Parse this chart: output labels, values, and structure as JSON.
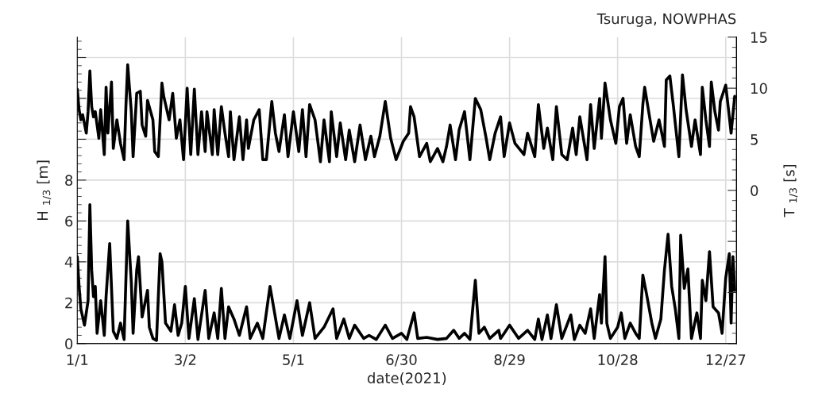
{
  "chart_data": {
    "type": "line",
    "title": "Tsuruga, NOWPHAS",
    "xlabel": "date(2021)",
    "ylabel": "H $_{1/3}$ [m]",
    "y2label": "T $_{1/3}$ [s]",
    "xlim": [
      "2021-01-01",
      "2022-01-02"
    ],
    "xticks": [
      {
        "value": "2021-01-01",
        "label": "1/1"
      },
      {
        "value": "2021-03-02",
        "label": "3/2"
      },
      {
        "value": "2021-05-01",
        "label": "5/1"
      },
      {
        "value": "2021-06-30",
        "label": "6/30"
      },
      {
        "value": "2021-08-29",
        "label": "8/29"
      },
      {
        "value": "2021-10-28",
        "label": "10/28"
      },
      {
        "value": "2021-12-27",
        "label": "12/27"
      }
    ],
    "ylim": [
      0,
      15
    ],
    "yticks": [
      0,
      2,
      4,
      6,
      8,
      {
        "value": 10,
        "label": null
      },
      {
        "value": 12,
        "label": null
      },
      {
        "value": 14,
        "label": null
      }
    ],
    "y2lim": [
      -15,
      15
    ],
    "y2ticks": [
      {
        "value": -15,
        "label": null
      },
      {
        "value": -10,
        "label": null
      },
      {
        "value": -5,
        "label": null
      },
      0,
      5,
      10,
      15
    ],
    "grid": true,
    "line_style": "solid",
    "marker": "none",
    "series": [
      {
        "color": "#000000",
        "x": [
          "2021-01-01",
          "2021-01-02",
          "2021-01-03",
          "2021-01-04",
          "2021-01-05",
          "2021-01-07",
          "2021-01-08",
          "2021-01-09",
          "2021-01-10",
          "2021-01-11",
          "2021-01-12",
          "2021-01-14",
          "2021-01-16",
          "2021-01-17",
          "2021-01-19",
          "2021-01-21",
          "2021-01-23",
          "2021-01-25",
          "2021-01-27",
          "2021-01-29",
          "2021-01-31",
          "2021-02-01",
          "2021-02-03",
          "2021-02-04",
          "2021-02-06",
          "2021-02-09",
          "2021-02-10",
          "2021-02-12",
          "2021-02-14",
          "2021-02-16",
          "2021-02-17",
          "2021-02-19",
          "2021-02-22",
          "2021-02-24",
          "2021-02-26",
          "2021-02-28",
          "2021-03-02",
          "2021-03-04",
          "2021-03-07",
          "2021-03-09",
          "2021-03-13",
          "2021-03-15",
          "2021-03-18",
          "2021-03-20",
          "2021-03-22",
          "2021-03-24",
          "2021-03-26",
          "2021-03-29",
          "2021-04-01",
          "2021-04-05",
          "2021-04-07",
          "2021-04-11",
          "2021-04-14",
          "2021-04-18",
          "2021-04-23",
          "2021-04-26",
          "2021-04-29",
          "2021-05-03",
          "2021-05-06",
          "2021-05-10",
          "2021-05-13",
          "2021-05-18",
          "2021-05-23",
          "2021-05-25",
          "2021-05-29",
          "2021-06-01",
          "2021-06-04",
          "2021-06-09",
          "2021-06-12",
          "2021-06-16",
          "2021-06-21",
          "2021-06-25",
          "2021-06-30",
          "2021-07-03",
          "2021-07-07",
          "2021-07-09",
          "2021-07-14",
          "2021-07-20",
          "2021-07-25",
          "2021-07-29",
          "2021-08-01",
          "2021-08-04",
          "2021-08-07",
          "2021-08-10",
          "2021-08-12",
          "2021-08-15",
          "2021-08-18",
          "2021-08-23",
          "2021-08-24",
          "2021-08-26",
          "2021-08-29",
          "2021-09-03",
          "2021-09-08",
          "2021-09-12",
          "2021-09-14",
          "2021-09-16",
          "2021-09-19",
          "2021-09-21",
          "2021-09-24",
          "2021-09-27",
          "2021-10-02",
          "2021-10-04",
          "2021-10-07",
          "2021-10-10",
          "2021-10-13",
          "2021-10-15",
          "2021-10-18",
          "2021-10-19",
          "2021-10-21",
          "2021-10-22",
          "2021-10-24",
          "2021-10-28",
          "2021-10-30",
          "2021-11-01",
          "2021-11-04",
          "2021-11-07",
          "2021-11-09",
          "2021-11-11",
          "2021-11-13",
          "2021-11-16",
          "2021-11-18",
          "2021-11-21",
          "2021-11-23",
          "2021-11-25",
          "2021-11-27",
          "2021-11-29",
          "2021-12-01",
          "2021-12-02",
          "2021-12-04",
          "2021-12-06",
          "2021-12-08",
          "2021-12-11",
          "2021-12-13",
          "2021-12-14",
          "2021-12-16",
          "2021-12-18",
          "2021-12-20",
          "2021-12-23",
          "2021-12-25",
          "2021-12-27",
          "2021-12-29",
          "2021-12-30",
          "2021-12-31",
          "2022-01-01"
        ],
        "values": [
          4.25,
          2.8,
          1.7,
          1.3,
          0.9,
          2.1,
          6.8,
          3.6,
          2.3,
          2.8,
          0.5,
          2.1,
          0.4,
          2.3,
          4.9,
          0.6,
          0.25,
          1.0,
          0.2,
          6.0,
          3.0,
          0.5,
          3.6,
          4.25,
          1.3,
          2.6,
          0.8,
          0.25,
          0.15,
          4.4,
          4.0,
          1.0,
          0.6,
          1.9,
          0.4,
          1.0,
          2.8,
          0.25,
          2.2,
          0.2,
          2.6,
          0.25,
          1.5,
          0.25,
          2.7,
          0.25,
          1.8,
          1.2,
          0.4,
          1.8,
          0.25,
          1.0,
          0.25,
          2.8,
          0.25,
          1.4,
          0.25,
          2.1,
          0.4,
          2.0,
          0.25,
          0.8,
          1.7,
          0.25,
          1.2,
          0.25,
          0.9,
          0.25,
          0.4,
          0.2,
          0.9,
          0.25,
          0.5,
          0.2,
          1.5,
          0.25,
          0.3,
          0.2,
          0.25,
          0.65,
          0.25,
          0.5,
          0.2,
          3.1,
          0.5,
          0.8,
          0.25,
          0.65,
          0.25,
          0.5,
          0.9,
          0.25,
          0.65,
          0.2,
          1.2,
          0.2,
          1.4,
          0.25,
          1.9,
          0.25,
          1.4,
          0.2,
          0.9,
          0.5,
          1.7,
          0.25,
          2.4,
          1.0,
          4.25,
          1.0,
          0.25,
          0.8,
          1.5,
          0.25,
          1.0,
          0.5,
          0.25,
          3.35,
          2.45,
          1.0,
          0.25,
          1.2,
          3.6,
          5.35,
          2.8,
          1.7,
          0.25,
          5.3,
          2.7,
          3.65,
          0.25,
          1.5,
          0.25,
          3.1,
          2.1,
          4.5,
          1.8,
          1.5,
          0.5,
          3.2,
          4.4,
          1.0,
          4.25,
          2.6
        ]
      },
      {
        "color": "#000000",
        "axis": "y2",
        "x": [
          "2021-01-01",
          "2021-01-02",
          "2021-01-03",
          "2021-01-04",
          "2021-01-06",
          "2021-01-07",
          "2021-01-08",
          "2021-01-09",
          "2021-01-10",
          "2021-01-11",
          "2021-01-13",
          "2021-01-14",
          "2021-01-16",
          "2021-01-17",
          "2021-01-18",
          "2021-01-20",
          "2021-01-21",
          "2021-01-23",
          "2021-01-25",
          "2021-01-27",
          "2021-01-28",
          "2021-01-29",
          "2021-01-31",
          "2021-02-01",
          "2021-02-03",
          "2021-02-05",
          "2021-02-06",
          "2021-02-08",
          "2021-02-09",
          "2021-02-12",
          "2021-02-13",
          "2021-02-15",
          "2021-02-17",
          "2021-02-18",
          "2021-02-21",
          "2021-02-23",
          "2021-02-25",
          "2021-02-27",
          "2021-03-01",
          "2021-03-03",
          "2021-03-05",
          "2021-03-07",
          "2021-03-09",
          "2021-03-11",
          "2021-03-13",
          "2021-03-14",
          "2021-03-17",
          "2021-03-18",
          "2021-03-20",
          "2021-03-22",
          "2021-03-24",
          "2021-03-26",
          "2021-03-27",
          "2021-03-29",
          "2021-04-01",
          "2021-04-03",
          "2021-04-05",
          "2021-04-06",
          "2021-04-09",
          "2021-04-12",
          "2021-04-14",
          "2021-04-16",
          "2021-04-19",
          "2021-04-21",
          "2021-04-23",
          "2021-04-26",
          "2021-04-28",
          "2021-05-01",
          "2021-05-04",
          "2021-05-06",
          "2021-05-08",
          "2021-05-10",
          "2021-05-13",
          "2021-05-16",
          "2021-05-18",
          "2021-05-21",
          "2021-05-22",
          "2021-05-25",
          "2021-05-27",
          "2021-05-30",
          "2021-06-01",
          "2021-06-04",
          "2021-06-07",
          "2021-06-10",
          "2021-06-13",
          "2021-06-15",
          "2021-06-18",
          "2021-06-21",
          "2021-06-24",
          "2021-06-27",
          "2021-07-01",
          "2021-07-04",
          "2021-07-05",
          "2021-07-07",
          "2021-07-10",
          "2021-07-14",
          "2021-07-16",
          "2021-07-20",
          "2021-07-23",
          "2021-07-25",
          "2021-07-27",
          "2021-07-30",
          "2021-08-01",
          "2021-08-04",
          "2021-08-07",
          "2021-08-10",
          "2021-08-13",
          "2021-08-16",
          "2021-08-18",
          "2021-08-21",
          "2021-08-24",
          "2021-08-26",
          "2021-08-29",
          "2021-09-01",
          "2021-09-06",
          "2021-09-08",
          "2021-09-12",
          "2021-09-14",
          "2021-09-17",
          "2021-09-19",
          "2021-09-22",
          "2021-09-24",
          "2021-09-27",
          "2021-09-30",
          "2021-10-03",
          "2021-10-05",
          "2021-10-07",
          "2021-10-11",
          "2021-10-13",
          "2021-10-15",
          "2021-10-18",
          "2021-10-19",
          "2021-10-21",
          "2021-10-24",
          "2021-10-27",
          "2021-10-29",
          "2021-10-31",
          "2021-11-02",
          "2021-11-04",
          "2021-11-07",
          "2021-11-09",
          "2021-11-11",
          "2021-11-12",
          "2021-11-15",
          "2021-11-17",
          "2021-11-20",
          "2021-11-23",
          "2021-11-24",
          "2021-11-26",
          "2021-11-28",
          "2021-12-01",
          "2021-12-03",
          "2021-12-05",
          "2021-12-08",
          "2021-12-10",
          "2021-12-13",
          "2021-12-14",
          "2021-12-16",
          "2021-12-18",
          "2021-12-19",
          "2021-12-21",
          "2021-12-23",
          "2021-12-24",
          "2021-12-27",
          "2021-12-29",
          "2021-12-30",
          "2022-01-01"
        ],
        "values": [
          9.9,
          7.9,
          6.9,
          7.4,
          5.6,
          7.7,
          11.7,
          8.2,
          7.2,
          7.7,
          5.1,
          7.9,
          3.5,
          10.1,
          5.6,
          10.6,
          4.1,
          6.9,
          4.6,
          3.0,
          8.2,
          12.3,
          7.7,
          3.3,
          9.5,
          9.7,
          6.4,
          5.3,
          8.8,
          6.9,
          3.8,
          3.3,
          10.5,
          9.2,
          6.9,
          9.5,
          5.1,
          6.9,
          3.0,
          10.0,
          3.5,
          9.9,
          3.5,
          7.7,
          3.8,
          7.7,
          3.5,
          7.9,
          3.5,
          8.2,
          5.6,
          3.3,
          7.7,
          3.0,
          7.2,
          3.0,
          6.9,
          4.1,
          6.9,
          7.9,
          3.0,
          3.0,
          8.7,
          5.6,
          3.8,
          7.4,
          3.3,
          7.7,
          3.8,
          7.9,
          3.3,
          8.4,
          6.9,
          2.8,
          6.9,
          2.8,
          7.7,
          3.3,
          6.6,
          3.0,
          5.9,
          2.8,
          6.4,
          3.0,
          5.3,
          3.3,
          5.3,
          8.7,
          5.1,
          3.0,
          4.8,
          5.6,
          8.2,
          7.2,
          3.3,
          4.6,
          2.8,
          4.1,
          2.8,
          4.3,
          6.4,
          3.0,
          5.9,
          7.7,
          3.0,
          9.0,
          7.9,
          5.1,
          3.0,
          5.6,
          7.2,
          3.3,
          6.6,
          4.6,
          3.5,
          5.6,
          3.3,
          8.4,
          4.1,
          6.1,
          3.0,
          8.2,
          3.5,
          3.0,
          6.1,
          3.5,
          7.2,
          3.0,
          8.4,
          4.1,
          9.0,
          5.1,
          10.5,
          6.9,
          4.6,
          8.2,
          9.0,
          4.6,
          7.4,
          4.3,
          3.3,
          8.4,
          10.1,
          6.9,
          4.8,
          6.9,
          4.3,
          10.8,
          11.2,
          8.2,
          3.3,
          11.3,
          7.9,
          4.3,
          6.9,
          3.5,
          10.1,
          6.9,
          4.3,
          10.6,
          7.7,
          5.9,
          8.7,
          10.3,
          7.2,
          5.6,
          9.2
        ]
      }
    ]
  }
}
